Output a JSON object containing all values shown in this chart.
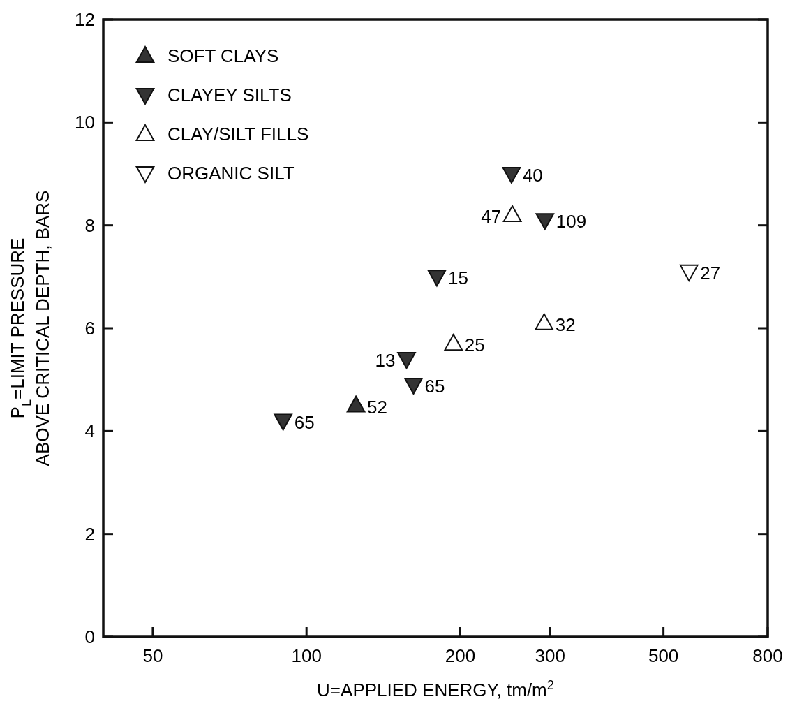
{
  "chart_data": {
    "type": "scatter",
    "xlabel": "U=APPLIED ENERGY, tm/m$^{2}$",
    "ylabel": "P$_{L}$=LIMIT PRESSURE\nABOVE CRITICAL DEPTH, BARS",
    "log": "x",
    "xlim": [
      40,
      800
    ],
    "xticks": [
      50,
      100,
      200,
      300,
      500,
      800
    ],
    "ylim": [
      0,
      12
    ],
    "yticks": [
      0,
      2,
      4,
      6,
      8,
      10,
      12
    ],
    "legend": "top left",
    "grid": false,
    "series": [
      {
        "name": "SOFT CLAYS",
        "color": "#333333",
        "marker": "triangle",
        "x": [
          125
        ],
        "values": [
          4.5
        ]
      },
      {
        "name": "CLAYEY SILTS",
        "color": "#333333",
        "marker": "triangle-down",
        "x": [
          90,
          157,
          162,
          180,
          252,
          293
        ],
        "values": [
          4.2,
          5.4,
          4.9,
          7.0,
          9.0,
          8.1
        ]
      },
      {
        "name": "CLAY/SILT FILLS",
        "color": "#ffffff",
        "marker": "triangle",
        "x": [
          194,
          253,
          292
        ],
        "values": [
          5.7,
          8.2,
          6.1
        ]
      },
      {
        "name": "ORGANIC SILT",
        "color": "#ffffff",
        "marker": "triangle-down",
        "x": [
          561
        ],
        "values": [
          7.1
        ]
      }
    ],
    "annotations": [
      {
        "text": "52",
        "x": 125,
        "y": 4.5
      },
      {
        "text": "65",
        "x": 90,
        "y": 4.2
      },
      {
        "text": "13",
        "x": 157,
        "y": 5.4
      },
      {
        "text": "65",
        "x": 162,
        "y": 4.9
      },
      {
        "text": "15",
        "x": 180,
        "y": 7.0
      },
      {
        "text": "40",
        "x": 252,
        "y": 9.0
      },
      {
        "text": "109",
        "x": 293,
        "y": 8.1
      },
      {
        "text": "25",
        "x": 194,
        "y": 5.7
      },
      {
        "text": "47",
        "x": 253,
        "y": 8.2
      },
      {
        "text": "32",
        "x": 292,
        "y": 6.1
      },
      {
        "text": "27",
        "x": 561,
        "y": 7.1
      }
    ]
  }
}
